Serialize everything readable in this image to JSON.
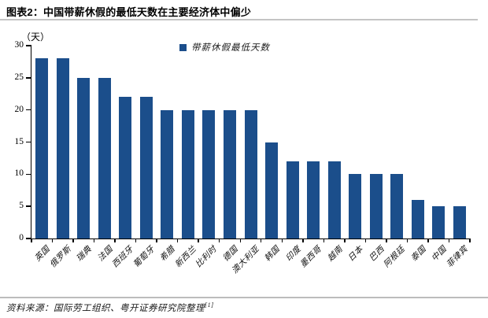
{
  "title": "图表2：中国带薪休假的最低天数在主要经济体中偏少",
  "legend": {
    "label": "带薪休假最低天数"
  },
  "y_axis": {
    "unit": "（天）"
  },
  "source": {
    "prefix": "资料来源：",
    "text": "国际劳工组织、粤开证券研究院整理",
    "footnote_marker": "[1]"
  },
  "colors": {
    "bar": "#1B4E8B",
    "axis": "#000000",
    "rule": "#c4c4c4"
  },
  "chart_data": {
    "type": "bar",
    "title": "图表2：中国带薪休假的最低天数在主要经济体中偏少",
    "legend_entries": [
      "带薪休假最低天数"
    ],
    "legend_position": "top-center",
    "categories": [
      "英国",
      "俄罗斯",
      "瑞典",
      "法国",
      "西班牙",
      "葡萄牙",
      "希腊",
      "新西兰",
      "比利时",
      "德国",
      "澳大利亚",
      "韩国",
      "印度",
      "墨西哥",
      "越南",
      "日本",
      "巴西",
      "阿根廷",
      "泰国",
      "中国",
      "菲律宾"
    ],
    "values": [
      28,
      28,
      25,
      25,
      22,
      22,
      20,
      20,
      20,
      20,
      20,
      15,
      12,
      12,
      12,
      10,
      10,
      10,
      6,
      5,
      5
    ],
    "xlabel": "",
    "ylabel": "（天）",
    "ylim": [
      0,
      30
    ],
    "y_ticks": [
      30,
      25,
      20,
      15,
      10,
      5,
      0
    ],
    "grid": false,
    "bar_color": "#1B4E8B"
  }
}
